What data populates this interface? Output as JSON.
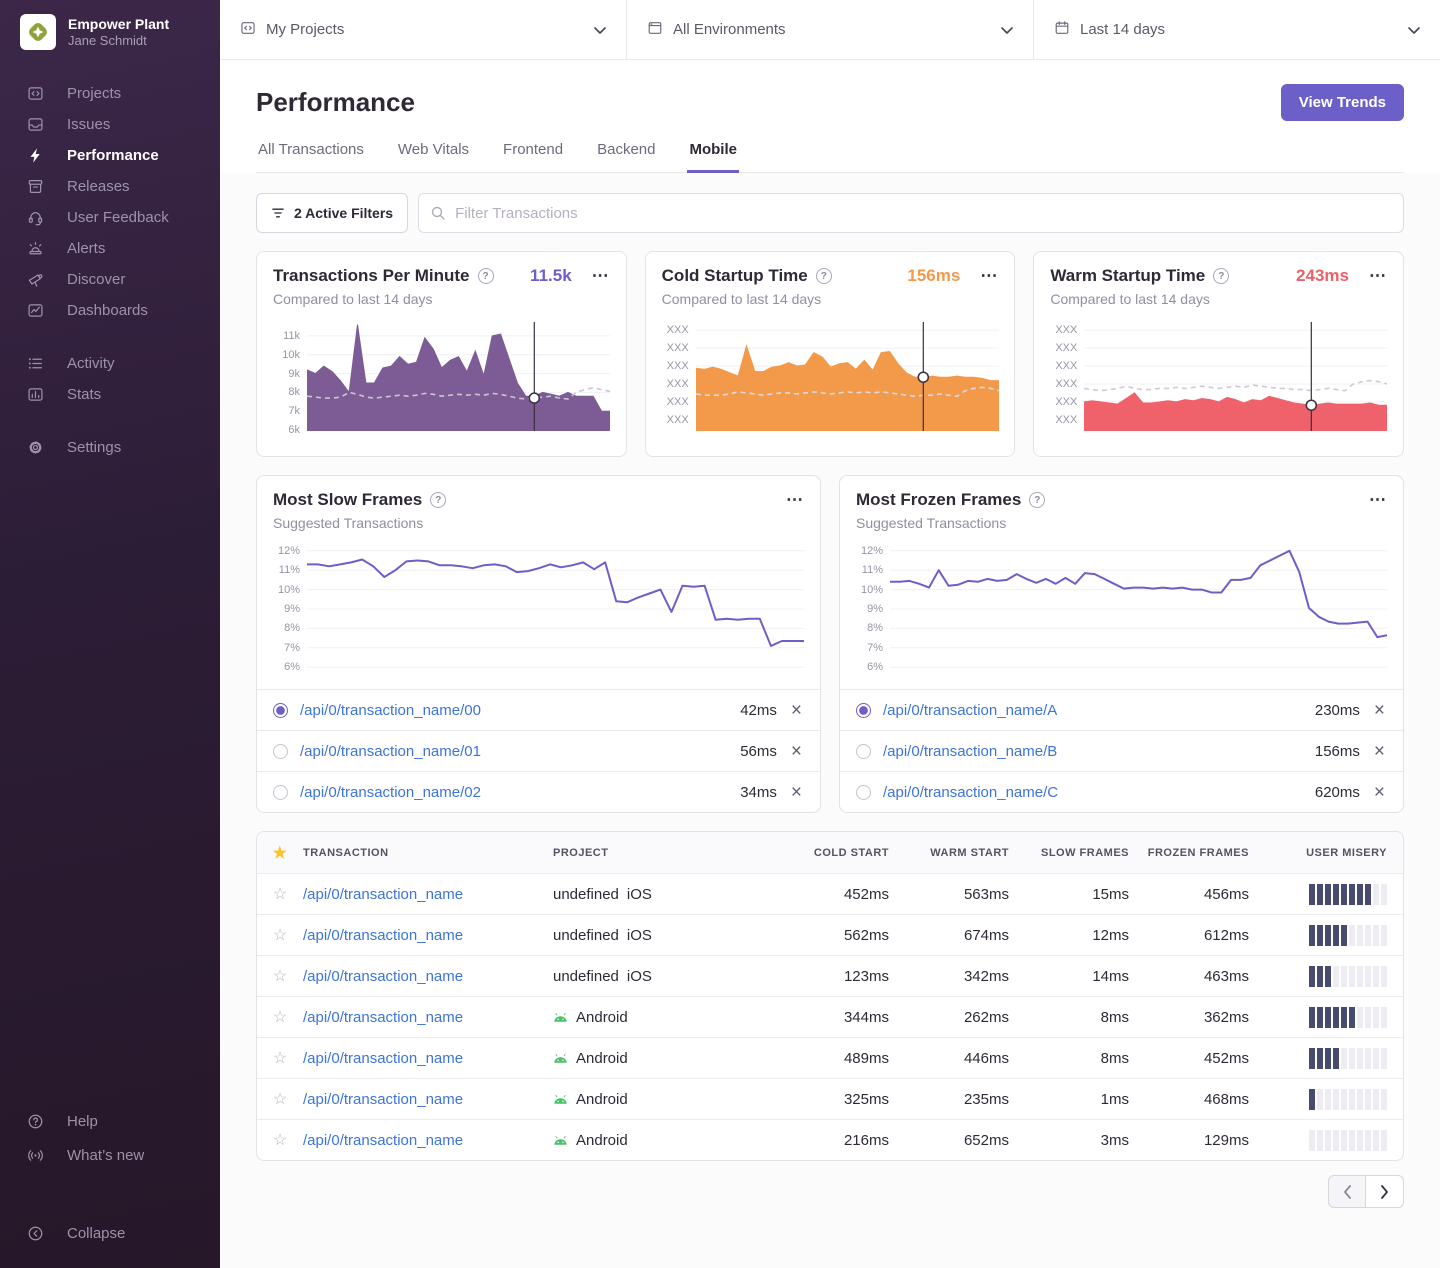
{
  "sidebar": {
    "org_name": "Empower Plant",
    "user_name": "Jane Schmidt",
    "nav_main": [
      {
        "label": "Projects",
        "icon": "projects",
        "active": false
      },
      {
        "label": "Issues",
        "icon": "issues",
        "active": false
      },
      {
        "label": "Performance",
        "icon": "performance",
        "active": true
      },
      {
        "label": "Releases",
        "icon": "releases",
        "active": false
      },
      {
        "label": "User Feedback",
        "icon": "user-feedback",
        "active": false
      },
      {
        "label": "Alerts",
        "icon": "alerts",
        "active": false
      },
      {
        "label": "Discover",
        "icon": "discover",
        "active": false
      },
      {
        "label": "Dashboards",
        "icon": "dashboards",
        "active": false
      }
    ],
    "nav_secondary": [
      {
        "label": "Activity",
        "icon": "activity",
        "active": false
      },
      {
        "label": "Stats",
        "icon": "stats",
        "active": false
      }
    ],
    "nav_settings": [
      {
        "label": "Settings",
        "icon": "settings",
        "active": false
      }
    ],
    "nav_footer": [
      {
        "label": "Help",
        "icon": "help",
        "active": false
      },
      {
        "label": "What’s new",
        "icon": "whats-new",
        "active": false
      }
    ],
    "nav_collapse": [
      {
        "label": "Collapse",
        "icon": "collapse",
        "active": false
      }
    ]
  },
  "topbar": {
    "projects_label": "My Projects",
    "environments_label": "All Environments",
    "daterange_label": "Last 14 days"
  },
  "header": {
    "title": "Performance",
    "view_trends": "View Trends",
    "tabs": [
      {
        "label": "All Transactions",
        "active": false
      },
      {
        "label": "Web Vitals",
        "active": false
      },
      {
        "label": "Frontend",
        "active": false
      },
      {
        "label": "Backend",
        "active": false
      },
      {
        "label": "Mobile",
        "active": true
      }
    ]
  },
  "filters": {
    "active_filters_label": "2 Active Filters",
    "search_placeholder": "Filter Transactions"
  },
  "cards": {
    "tpm": {
      "title": "Transactions Per Minute",
      "value": "11.5k",
      "subtitle": "Compared to last 14 days",
      "accent": "#6C5FC7"
    },
    "cold": {
      "title": "Cold Startup Time",
      "value": "156ms",
      "subtitle": "Compared to last 14 days",
      "accent": "#F2994A"
    },
    "warm": {
      "title": "Warm Startup Time",
      "value": "243ms",
      "subtitle": "Compared to last 14 days",
      "accent": "#F05E66"
    },
    "slow": {
      "title": "Most Slow Frames",
      "subtitle": "Suggested Transactions",
      "selected": 0,
      "rows": [
        {
          "name": "/api/0/transaction_name/00",
          "value": "42ms"
        },
        {
          "name": "/api/0/transaction_name/01",
          "value": "56ms"
        },
        {
          "name": "/api/0/transaction_name/02",
          "value": "34ms"
        }
      ]
    },
    "frozen": {
      "title": "Most Frozen Frames",
      "subtitle": "Suggested Transactions",
      "selected": 0,
      "rows": [
        {
          "name": "/api/0/transaction_name/A",
          "value": "230ms"
        },
        {
          "name": "/api/0/transaction_name/B",
          "value": "156ms"
        },
        {
          "name": "/api/0/transaction_name/C",
          "value": "620ms"
        }
      ]
    }
  },
  "chart_data": [
    {
      "key": "tpm",
      "type": "area",
      "title": "Transactions Per Minute",
      "ylim": [
        5.95,
        11.9
      ],
      "unit": "k transactions/min",
      "grid": true,
      "legend": "none",
      "ticks": [
        {
          "label": "11k",
          "value": 11
        },
        {
          "label": "10k",
          "value": 10
        },
        {
          "label": "9k",
          "value": 9
        },
        {
          "label": "8k",
          "value": 8
        },
        {
          "label": "7k",
          "value": 7
        },
        {
          "label": "6k",
          "value": 6
        }
      ],
      "series": [
        {
          "name": "current period",
          "style": "area",
          "color": "#7D5C95",
          "fill": "#7D5C95",
          "values": [
            9.2,
            9.0,
            9.4,
            9.1,
            8.6,
            8.0,
            11.6,
            8.5,
            8.5,
            9.3,
            9.4,
            9.9,
            9.5,
            9.6,
            10.9,
            10.3,
            9.3,
            9.7,
            9.9,
            9.1,
            10.2,
            8.9,
            11.0,
            11.1,
            9.8,
            8.5,
            7.8,
            7.8,
            8.0,
            7.9,
            7.8,
            8.0,
            7.8,
            7.8,
            7.8,
            7.0,
            7.0
          ]
        },
        {
          "name": "previous period",
          "style": "dashed",
          "color": "#CBC5D2",
          "values": [
            7.8,
            7.75,
            7.7,
            7.7,
            7.75,
            8.0,
            7.9,
            7.75,
            7.7,
            7.75,
            7.8,
            7.85,
            7.8,
            7.85,
            7.95,
            7.9,
            7.8,
            7.85,
            7.9,
            7.85,
            7.9,
            7.85,
            7.95,
            7.9,
            7.8,
            7.7,
            7.65,
            7.7,
            7.75,
            7.8,
            7.7,
            7.65,
            8.0,
            8.15,
            8.25,
            8.15,
            8.05
          ]
        }
      ],
      "marker": {
        "index": 27,
        "series": 1
      }
    },
    {
      "key": "cold",
      "type": "area",
      "title": "Cold Startup Time",
      "ylim": [
        0,
        100
      ],
      "unit": "ms (axis redacted)",
      "grid": true,
      "legend": "none",
      "ticks": [
        {
          "label": "XXX",
          "value": 90
        },
        {
          "label": "XXX",
          "value": 74
        },
        {
          "label": "XXX",
          "value": 58
        },
        {
          "label": "XXX",
          "value": 42
        },
        {
          "label": "XXX",
          "value": 26
        },
        {
          "label": "XXX",
          "value": 10
        }
      ],
      "series": [
        {
          "name": "current period",
          "style": "area",
          "color": "#F2994A",
          "fill": "#F2994A",
          "values": [
            56,
            55,
            57,
            55,
            52,
            49,
            76,
            53,
            53,
            57,
            58,
            61,
            58,
            59,
            70,
            66,
            57,
            60,
            61,
            55,
            63,
            54,
            70,
            71,
            60,
            52,
            48,
            48,
            49,
            48,
            48,
            49,
            48,
            48,
            47,
            45,
            45
          ]
        },
        {
          "name": "previous period",
          "style": "dashed",
          "color": "#DDD8E1",
          "values": [
            33,
            32,
            32,
            32,
            33,
            35,
            34,
            33,
            32,
            33,
            34,
            34,
            33,
            34,
            35,
            34,
            33,
            34,
            35,
            34,
            35,
            34,
            35,
            34,
            33,
            32,
            31,
            32,
            32,
            33,
            32,
            31,
            36,
            38,
            39,
            38,
            36
          ]
        }
      ],
      "marker": {
        "index": 27,
        "series": 0
      }
    },
    {
      "key": "warm",
      "type": "area",
      "title": "Warm Startup Time",
      "ylim": [
        0,
        100
      ],
      "unit": "ms (axis redacted)",
      "grid": true,
      "legend": "none",
      "ticks": [
        {
          "label": "XXX",
          "value": 90
        },
        {
          "label": "XXX",
          "value": 74
        },
        {
          "label": "XXX",
          "value": 58
        },
        {
          "label": "XXX",
          "value": 42
        },
        {
          "label": "XXX",
          "value": 26
        },
        {
          "label": "XXX",
          "value": 10
        }
      ],
      "series": [
        {
          "name": "current period",
          "style": "area",
          "color": "#EF626C",
          "fill": "#EF626C",
          "values": [
            26,
            27,
            26,
            25,
            24,
            29,
            34,
            25,
            25,
            26,
            27,
            26,
            28,
            27,
            29,
            28,
            26,
            30,
            28,
            25,
            28,
            27,
            31,
            29,
            27,
            25,
            24,
            23,
            24,
            25,
            24,
            24,
            24,
            24,
            25,
            23,
            23
          ]
        },
        {
          "name": "previous period",
          "style": "dashed",
          "color": "#CFC9D6",
          "values": [
            38,
            37,
            36,
            37,
            38,
            40,
            38,
            37,
            37,
            38,
            38,
            39,
            38,
            39,
            40,
            39,
            38,
            39,
            40,
            39,
            41,
            40,
            39,
            38,
            38,
            37,
            37,
            36,
            37,
            38,
            37,
            36,
            42,
            44,
            45,
            44,
            42
          ]
        }
      ],
      "marker": {
        "index": 27,
        "series": 0
      }
    },
    {
      "key": "slow",
      "type": "line",
      "title": "Most Slow Frames",
      "ylim": [
        5.6,
        12.4
      ],
      "unit": "% slow frames",
      "grid": true,
      "legend": "none",
      "ticks": [
        {
          "label": "12%",
          "value": 12
        },
        {
          "label": "11%",
          "value": 11
        },
        {
          "label": "10%",
          "value": 10
        },
        {
          "label": "9%",
          "value": 9
        },
        {
          "label": "8%",
          "value": 8
        },
        {
          "label": "7%",
          "value": 7
        },
        {
          "label": "6%",
          "value": 6
        }
      ],
      "series": [
        {
          "name": "slow frames %",
          "style": "line",
          "color": "#6C5FC7",
          "values": [
            11.3,
            11.3,
            11.2,
            11.3,
            11.4,
            11.55,
            11.2,
            10.65,
            11.0,
            11.45,
            11.5,
            11.45,
            11.25,
            11.25,
            11.2,
            11.1,
            11.25,
            11.3,
            11.2,
            10.9,
            10.95,
            11.1,
            11.3,
            11.15,
            11.25,
            11.4,
            11.05,
            11.4,
            9.4,
            9.35,
            9.6,
            9.8,
            10.0,
            8.85,
            10.2,
            10.15,
            10.2,
            8.45,
            8.5,
            8.45,
            8.5,
            8.5,
            7.1,
            7.35,
            7.35,
            7.35
          ]
        }
      ]
    },
    {
      "key": "frozen",
      "type": "line",
      "title": "Most Frozen Frames",
      "ylim": [
        5.6,
        12.4
      ],
      "unit": "% frozen frames",
      "grid": true,
      "legend": "none",
      "ticks": [
        {
          "label": "12%",
          "value": 12
        },
        {
          "label": "11%",
          "value": 11
        },
        {
          "label": "10%",
          "value": 10
        },
        {
          "label": "9%",
          "value": 9
        },
        {
          "label": "8%",
          "value": 8
        },
        {
          "label": "7%",
          "value": 7
        },
        {
          "label": "6%",
          "value": 6
        }
      ],
      "series": [
        {
          "name": "frozen frames %",
          "style": "line",
          "color": "#6C5FC7",
          "values": [
            10.4,
            10.4,
            10.45,
            10.3,
            10.1,
            11.0,
            10.2,
            10.25,
            10.45,
            10.4,
            10.55,
            10.45,
            10.5,
            10.8,
            10.55,
            10.35,
            10.55,
            10.3,
            10.6,
            10.3,
            10.85,
            10.8,
            10.55,
            10.3,
            10.05,
            10.1,
            10.1,
            10.05,
            10.1,
            10.05,
            10.1,
            10.0,
            10.0,
            9.85,
            9.85,
            10.5,
            10.5,
            10.6,
            11.25,
            11.5,
            11.75,
            12.0,
            10.9,
            9.05,
            8.6,
            8.35,
            8.25,
            8.25,
            8.3,
            8.35,
            7.55,
            7.65
          ]
        }
      ]
    }
  ],
  "table": {
    "headers": [
      "TRANSACTION",
      "PROJECT",
      "COLD START",
      "WARM START",
      "SLOW FRAMES",
      "FROZEN FRAMES",
      "USER MISERY"
    ],
    "rows": [
      {
        "transaction": "/api/0/transaction_name",
        "project": "iOS",
        "os": "ios",
        "cold": "452ms",
        "warm": "563ms",
        "slow": "15ms",
        "frozen": "456ms",
        "misery": 8
      },
      {
        "transaction": "/api/0/transaction_name",
        "project": "iOS",
        "os": "ios",
        "cold": "562ms",
        "warm": "674ms",
        "slow": "12ms",
        "frozen": "612ms",
        "misery": 5
      },
      {
        "transaction": "/api/0/transaction_name",
        "project": "iOS",
        "os": "ios",
        "cold": "123ms",
        "warm": "342ms",
        "slow": "14ms",
        "frozen": "463ms",
        "misery": 3
      },
      {
        "transaction": "/api/0/transaction_name",
        "project": "Android",
        "os": "android",
        "cold": "344ms",
        "warm": "262ms",
        "slow": "8ms",
        "frozen": "362ms",
        "misery": 6
      },
      {
        "transaction": "/api/0/transaction_name",
        "project": "Android",
        "os": "android",
        "cold": "489ms",
        "warm": "446ms",
        "slow": "8ms",
        "frozen": "452ms",
        "misery": 4
      },
      {
        "transaction": "/api/0/transaction_name",
        "project": "Android",
        "os": "android",
        "cold": "325ms",
        "warm": "235ms",
        "slow": "1ms",
        "frozen": "468ms",
        "misery": 1
      },
      {
        "transaction": "/api/0/transaction_name",
        "project": "Android",
        "os": "android",
        "cold": "216ms",
        "warm": "652ms",
        "slow": "3ms",
        "frozen": "129ms",
        "misery": 0
      }
    ]
  },
  "misery_colors": {
    "filled": "#474B70",
    "empty": "#EDECF2"
  },
  "brand_colors": {
    "purple": "#6C5FC7",
    "orange": "#F2994A",
    "red": "#F05E66",
    "link_blue": "#3D74DB",
    "star_yellow": "#FFC227",
    "android_green": "#4AC16D"
  }
}
